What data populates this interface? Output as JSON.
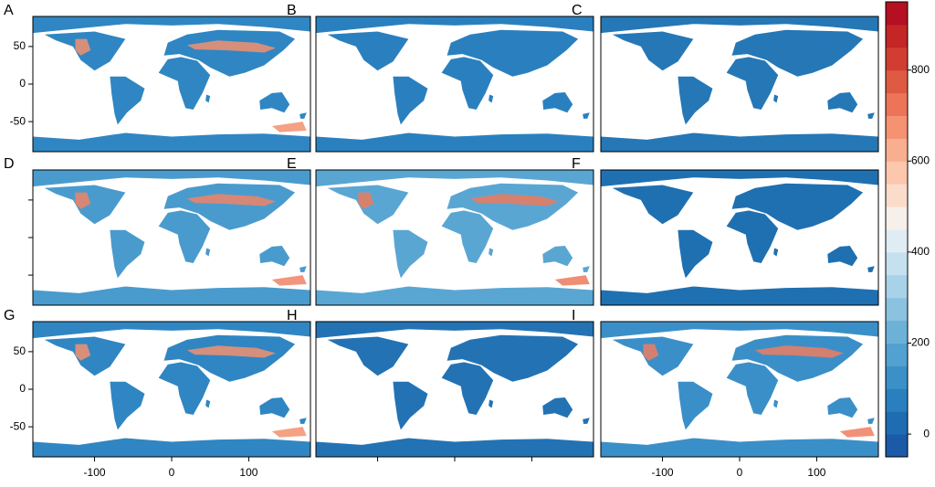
{
  "chart_data": {
    "type": "map",
    "xlim": [
      -180,
      180
    ],
    "ylim": [
      -90,
      90
    ],
    "xticks": [
      -100,
      0,
      100
    ],
    "yticks": [
      -50,
      0,
      50
    ],
    "panels": [
      {
        "label": "A",
        "land_color": "#2f86c3",
        "accent_color": "#f2906f",
        "y_tick_labels": true,
        "y_ticks": true,
        "x_tick_labels": false,
        "x_ticks": false
      },
      {
        "label": "B",
        "land_color": "#2a80bf",
        "y_tick_labels": false,
        "y_ticks": false,
        "x_tick_labels": false,
        "x_ticks": false
      },
      {
        "label": "C",
        "land_color": "#2577b6",
        "y_tick_labels": false,
        "y_ticks": false,
        "x_tick_labels": false,
        "x_ticks": false
      },
      {
        "label": "D",
        "land_color": "#4a9bcd",
        "accent_color": "#ef8466",
        "y_tick_labels": false,
        "y_ticks": true,
        "x_tick_labels": false,
        "x_ticks": false
      },
      {
        "label": "E",
        "land_color": "#5aa6d3",
        "accent_color": "#ec7a5c",
        "y_tick_labels": false,
        "y_ticks": false,
        "x_tick_labels": false,
        "x_ticks": false
      },
      {
        "label": "F",
        "land_color": "#1f70b1",
        "y_tick_labels": false,
        "y_ticks": false,
        "x_tick_labels": false,
        "x_ticks": false
      },
      {
        "label": "G",
        "land_color": "#2f86c3",
        "accent_color": "#f2906f",
        "y_tick_labels": true,
        "y_ticks": true,
        "x_tick_labels": true,
        "x_ticks": true
      },
      {
        "label": "H",
        "land_color": "#2373b4",
        "y_tick_labels": false,
        "y_ticks": false,
        "x_tick_labels": false,
        "x_ticks": true
      },
      {
        "label": "I",
        "land_color": "#3b8fc8",
        "accent_color": "#ee7e60",
        "y_tick_labels": false,
        "y_ticks": false,
        "x_tick_labels": true,
        "x_ticks": true
      }
    ],
    "colorbar": {
      "lim": [
        -50,
        950
      ],
      "ticks": [
        0,
        200,
        400,
        600,
        800
      ],
      "colors": [
        "#1a5aa6",
        "#1f6cb2",
        "#2a7fbf",
        "#3b90c8",
        "#52a1d0",
        "#6cb2d8",
        "#8ac2e0",
        "#a8d2e8",
        "#c5e0ef",
        "#e0ecf4",
        "#f7efe9",
        "#fbdccb",
        "#fcc7ad",
        "#f9ae8f",
        "#f49272",
        "#ec7558",
        "#df5a43",
        "#d23d31",
        "#c42525",
        "#b50f22"
      ]
    }
  }
}
